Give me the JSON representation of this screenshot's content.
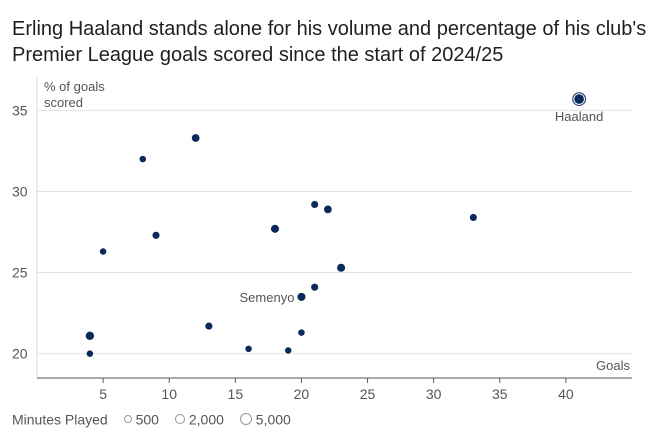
{
  "title": "Erling Haaland stands alone for his volume and percentage of his club's Premier League goals scored since the start of 2024/25",
  "chart_data": {
    "type": "scatter",
    "title": "Erling Haaland stands alone for his volume and percentage of his club's Premier League goals scored since the start of 2024/25",
    "xlabel": "Goals",
    "ylabel": "% of goals scored",
    "xlim": [
      0,
      45
    ],
    "ylim": [
      18.5,
      37
    ],
    "x_ticks": [
      5,
      10,
      15,
      20,
      25,
      30,
      35,
      40
    ],
    "y_ticks": [
      20,
      25,
      30,
      35
    ],
    "grid": "horizontal",
    "marker_color": "#0b2a5b",
    "points": [
      {
        "x": 41,
        "y": 35.7,
        "size": 2.4,
        "label": "Haaland"
      },
      {
        "x": 12,
        "y": 33.3,
        "size": 1.8
      },
      {
        "x": 8,
        "y": 32.0,
        "size": 1.4
      },
      {
        "x": 21,
        "y": 29.2,
        "size": 1.6
      },
      {
        "x": 22,
        "y": 28.9,
        "size": 1.8
      },
      {
        "x": 33,
        "y": 28.4,
        "size": 1.6
      },
      {
        "x": 18,
        "y": 27.7,
        "size": 1.9
      },
      {
        "x": 9,
        "y": 27.3,
        "size": 1.6
      },
      {
        "x": 5,
        "y": 26.3,
        "size": 1.4
      },
      {
        "x": 23,
        "y": 25.3,
        "size": 1.9
      },
      {
        "x": 21,
        "y": 24.1,
        "size": 1.6
      },
      {
        "x": 20,
        "y": 23.5,
        "size": 1.9,
        "label": "Semenyo"
      },
      {
        "x": 13,
        "y": 21.7,
        "size": 1.6
      },
      {
        "x": 20,
        "y": 21.3,
        "size": 1.4
      },
      {
        "x": 4,
        "y": 21.1,
        "size": 2.0
      },
      {
        "x": 16,
        "y": 20.3,
        "size": 1.4
      },
      {
        "x": 19,
        "y": 20.2,
        "size": 1.4
      },
      {
        "x": 4,
        "y": 20.0,
        "size": 1.4
      }
    ],
    "legend": {
      "title": "Minutes Played",
      "items": [
        "500",
        "2,000",
        "5,000"
      ]
    }
  }
}
